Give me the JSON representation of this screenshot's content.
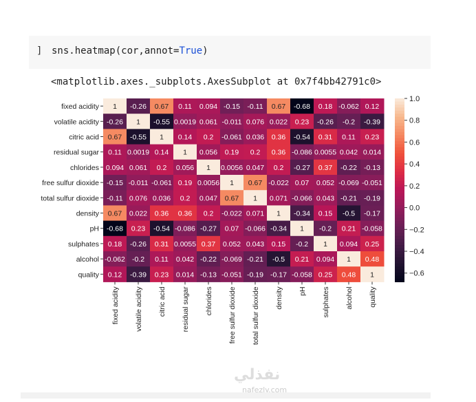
{
  "cell": {
    "prompt": "]",
    "code_prefix": "sns.heatmap(cor,annot=",
    "code_kw": "True",
    "code_suffix": ")"
  },
  "output_text": "<matplotlib.axes._subplots.AxesSubplot at 0x7f4bb42791c0>",
  "watermark": {
    "arabic": "نفذلي",
    "latin": "nafezly.com"
  },
  "chart_data": {
    "type": "heatmap",
    "colormap": "rocket",
    "annot": true,
    "labels": [
      "fixed acidity",
      "volatile acidity",
      "citric acid",
      "residual sugar",
      "chlorides",
      "free sulfur dioxide",
      "total sulfur dioxide",
      "density",
      "pH",
      "sulphates",
      "alcohol",
      "quality"
    ],
    "vmin": -0.68,
    "vmax": 1.0,
    "colorbar_ticks": [
      "1.0",
      "0.8",
      "0.6",
      "0.4",
      "0.2",
      "0.0",
      "−0.2",
      "−0.4",
      "−0.6"
    ],
    "colorbar_tick_values": [
      1.0,
      0.8,
      0.6,
      0.4,
      0.2,
      0.0,
      -0.2,
      -0.4,
      -0.6
    ],
    "matrix": [
      [
        1,
        -0.26,
        0.67,
        0.11,
        0.094,
        -0.15,
        -0.11,
        0.67,
        -0.68,
        0.18,
        -0.062,
        0.12
      ],
      [
        -0.26,
        1,
        -0.55,
        0.0019,
        0.061,
        -0.011,
        0.076,
        0.022,
        0.23,
        -0.26,
        -0.2,
        -0.39
      ],
      [
        0.67,
        -0.55,
        1,
        0.14,
        0.2,
        -0.061,
        0.036,
        0.36,
        -0.54,
        0.31,
        0.11,
        0.23
      ],
      [
        0.11,
        0.0019,
        0.14,
        1,
        0.056,
        0.19,
        0.2,
        0.36,
        -0.086,
        0.0055,
        0.042,
        0.014
      ],
      [
        0.094,
        0.061,
        0.2,
        0.056,
        1,
        0.0056,
        0.047,
        0.2,
        -0.27,
        0.37,
        -0.22,
        -0.13
      ],
      [
        -0.15,
        -0.011,
        -0.061,
        0.19,
        0.0056,
        1,
        0.67,
        -0.022,
        0.07,
        0.052,
        -0.069,
        -0.051
      ],
      [
        -0.11,
        0.076,
        0.036,
        0.2,
        0.047,
        0.67,
        1,
        0.071,
        -0.066,
        0.043,
        -0.21,
        -0.19
      ],
      [
        0.67,
        0.022,
        0.36,
        0.36,
        0.2,
        -0.022,
        0.071,
        1,
        -0.34,
        0.15,
        -0.5,
        -0.17
      ],
      [
        -0.68,
        0.23,
        -0.54,
        -0.086,
        -0.27,
        0.07,
        -0.066,
        -0.34,
        1,
        -0.2,
        0.21,
        -0.058
      ],
      [
        0.18,
        -0.26,
        0.31,
        0.0055,
        0.37,
        0.052,
        0.043,
        0.15,
        -0.2,
        1,
        0.094,
        0.25
      ],
      [
        -0.062,
        -0.2,
        0.11,
        0.042,
        -0.22,
        -0.069,
        -0.21,
        -0.5,
        0.21,
        0.094,
        1,
        0.48
      ],
      [
        0.12,
        -0.39,
        0.23,
        0.014,
        -0.13,
        -0.051,
        -0.19,
        -0.17,
        -0.058,
        0.25,
        0.48,
        1
      ]
    ]
  }
}
